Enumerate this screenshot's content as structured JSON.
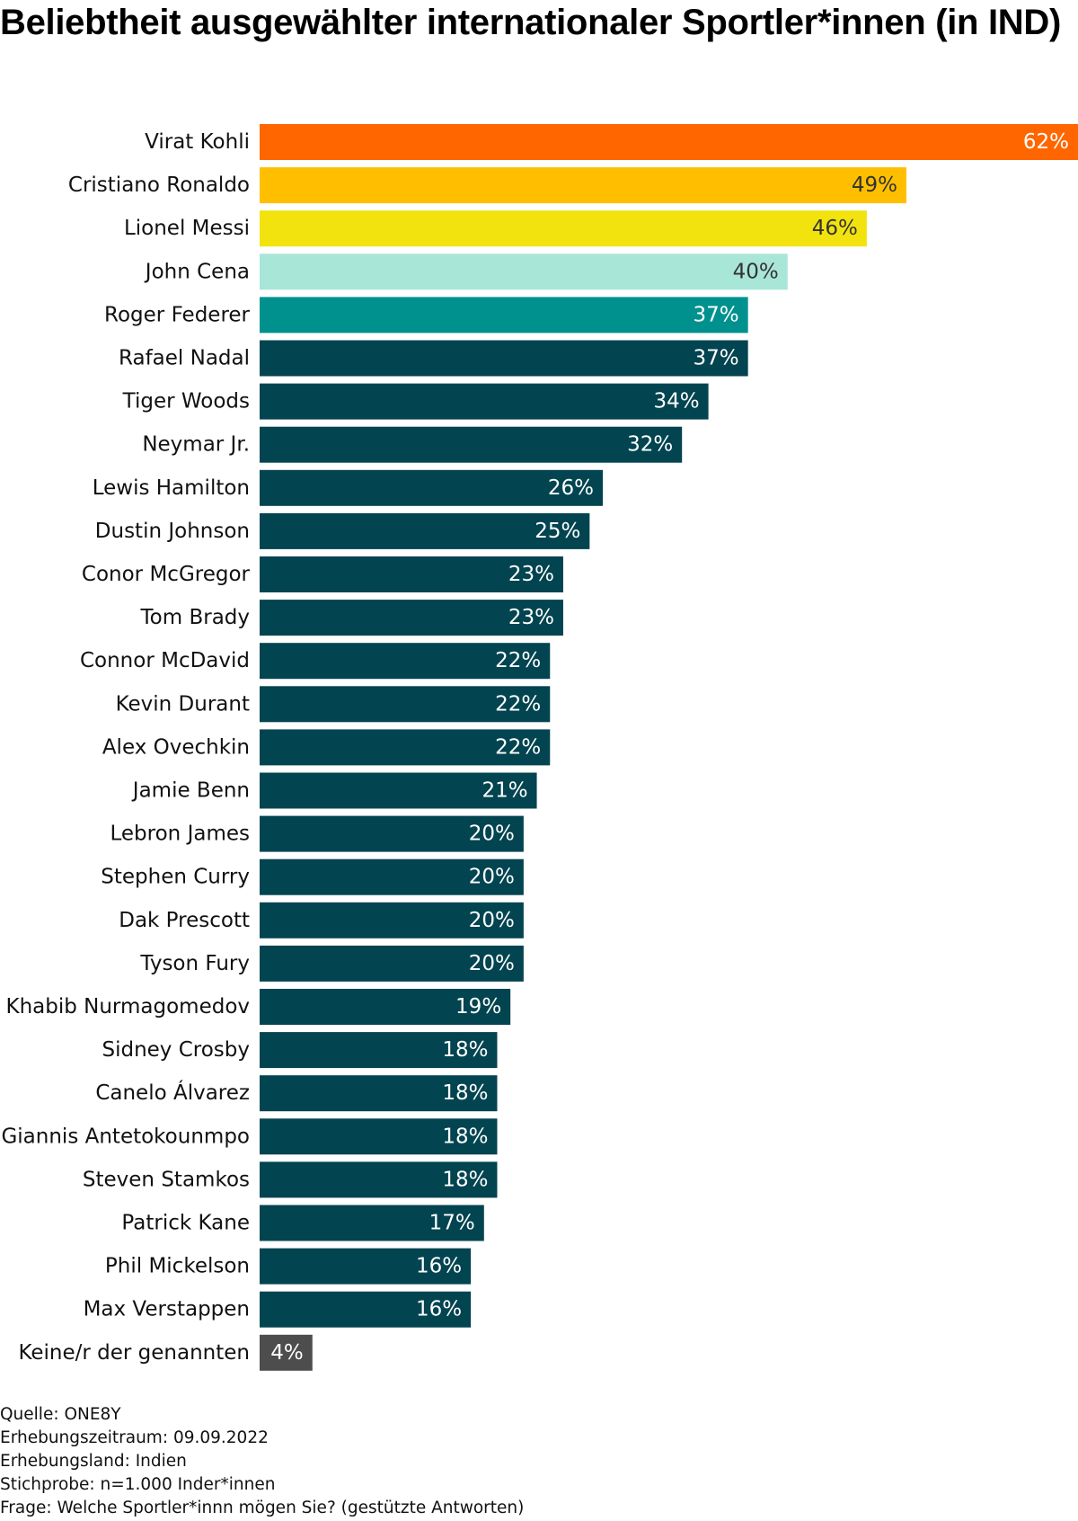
{
  "chart_data": {
    "type": "bar",
    "orientation": "horizontal",
    "title": "Beliebtheit ausgewählter internationaler Sportler*innen (in IND)",
    "xlabel": "",
    "ylabel": "",
    "unit": "%",
    "xlim": [
      0,
      62
    ],
    "grid": false,
    "legend": "none",
    "categories": [
      "Virat Kohli",
      "Cristiano Ronaldo",
      "Lionel Messi",
      "John Cena",
      "Roger Federer",
      "Rafael Nadal",
      "Tiger Woods",
      "Neymar Jr.",
      "Lewis Hamilton",
      "Dustin Johnson",
      "Conor McGregor",
      "Tom Brady",
      "Connor McDavid",
      "Kevin Durant",
      "Alex Ovechkin",
      "Jamie Benn",
      "Lebron James",
      "Stephen Curry",
      "Dak Prescott",
      "Tyson Fury",
      "Khabib Nurmagomedov",
      "Sidney Crosby",
      "Canelo Álvarez",
      "Giannis Antetokounmpo",
      "Steven Stamkos",
      "Patrick Kane",
      "Phil Mickelson",
      "Max Verstappen",
      "Keine/r der genannten"
    ],
    "values": [
      62,
      49,
      46,
      40,
      37,
      37,
      34,
      32,
      26,
      25,
      23,
      23,
      22,
      22,
      22,
      21,
      20,
      20,
      20,
      20,
      19,
      18,
      18,
      18,
      18,
      17,
      16,
      16,
      4
    ],
    "value_labels": [
      "62%",
      "49%",
      "46%",
      "40%",
      "37%",
      "37%",
      "34%",
      "32%",
      "26%",
      "25%",
      "23%",
      "23%",
      "22%",
      "22%",
      "22%",
      "21%",
      "20%",
      "20%",
      "20%",
      "20%",
      "19%",
      "18%",
      "18%",
      "18%",
      "18%",
      "17%",
      "16%",
      "16%",
      "4%"
    ],
    "colors": [
      "#ff6600",
      "#ffbf00",
      "#f2e30f",
      "#a8e6d8",
      "#00918f",
      "#024450",
      "#024450",
      "#024450",
      "#024450",
      "#024450",
      "#024450",
      "#024450",
      "#024450",
      "#024450",
      "#024450",
      "#024450",
      "#024450",
      "#024450",
      "#024450",
      "#024450",
      "#024450",
      "#024450",
      "#024450",
      "#024450",
      "#024450",
      "#024450",
      "#024450",
      "#024450",
      "#4d4d4d"
    ],
    "label_colors": [
      "#ffffff",
      "#333333",
      "#333333",
      "#333333",
      "#ffffff",
      "#ffffff",
      "#ffffff",
      "#ffffff",
      "#ffffff",
      "#ffffff",
      "#ffffff",
      "#ffffff",
      "#ffffff",
      "#ffffff",
      "#ffffff",
      "#ffffff",
      "#ffffff",
      "#ffffff",
      "#ffffff",
      "#ffffff",
      "#ffffff",
      "#ffffff",
      "#ffffff",
      "#ffffff",
      "#ffffff",
      "#ffffff",
      "#ffffff",
      "#ffffff",
      "#ffffff"
    ]
  },
  "footer": {
    "source": "Quelle: ONE8Y",
    "period": "Erhebungszeitraum: 09.09.2022",
    "country": "Erhebungsland: Indien",
    "sample": "Stichprobe: n=1.000 Inder*innen",
    "question": "Frage: Welche Sportler*innn mögen Sie? (gestützte Antworten)"
  }
}
